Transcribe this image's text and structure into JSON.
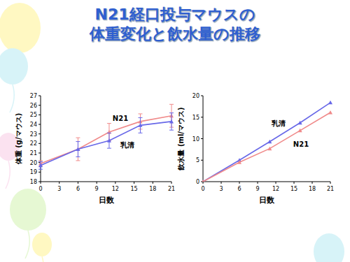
{
  "slide": {
    "title_lines": [
      "N21経口投与マウスの",
      "体重変化と飲水量の推移"
    ]
  },
  "chart_data": [
    {
      "type": "line",
      "x_label": "日数",
      "y_label": "体重 (g/マウス)",
      "x": [
        0,
        6,
        11,
        16,
        21
      ],
      "xlim": [
        0,
        21
      ],
      "xticks": [
        0,
        3,
        6,
        9,
        12,
        15,
        18,
        21
      ],
      "ylim": [
        18,
        27
      ],
      "yticks": [
        18,
        19,
        20,
        21,
        22,
        23,
        24,
        25,
        26,
        27
      ],
      "grid": false,
      "marker": "triangle",
      "series": [
        {
          "name": "N21",
          "color": "#f08a8a",
          "values": [
            19.9,
            21.4,
            23.2,
            24.3,
            24.9
          ],
          "errors": [
            0.3,
            1.2,
            0.9,
            0.8,
            1.2
          ]
        },
        {
          "name": "乳清",
          "color": "#6868e8",
          "values": [
            19.7,
            21.4,
            22.3,
            23.9,
            24.3
          ],
          "errors": [
            0.4,
            0.8,
            0.8,
            0.8,
            0.9
          ]
        }
      ]
    },
    {
      "type": "line",
      "x_label": "日数",
      "y_label": "飲水量 (ml/マウス)",
      "x": [
        0,
        6,
        11,
        16,
        21
      ],
      "xlim": [
        0,
        21
      ],
      "xticks": [
        0,
        3,
        6,
        9,
        12,
        15,
        18,
        21
      ],
      "ylim": [
        0,
        20
      ],
      "yticks": [
        0,
        5,
        10,
        15,
        20
      ],
      "grid": false,
      "marker": "triangle",
      "series": [
        {
          "name": "乳清",
          "color": "#6868e8",
          "values": [
            0,
            5.0,
            9.3,
            13.7,
            18.4
          ]
        },
        {
          "name": "N21",
          "color": "#f08a8a",
          "values": [
            0,
            4.5,
            7.7,
            11.9,
            16.1
          ]
        }
      ]
    }
  ]
}
